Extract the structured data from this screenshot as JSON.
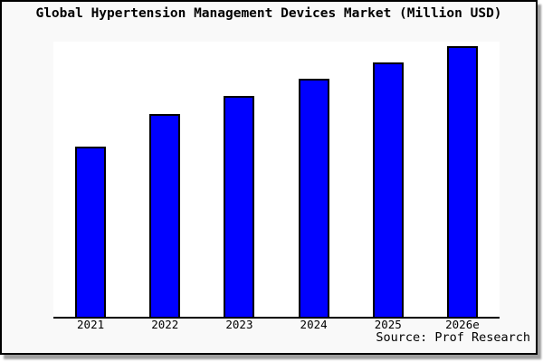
{
  "chart_data": {
    "type": "bar",
    "title": "Global Hypertension Management Devices Market (Million USD)",
    "categories": [
      "2021",
      "2022",
      "2023",
      "2024",
      "2025",
      "2026e"
    ],
    "values": [
      62.8,
      74.9,
      81.6,
      87.8,
      93.8,
      100
    ],
    "xlabel": "",
    "ylabel": "",
    "ylim": [
      0,
      101.6
    ],
    "grid": false,
    "legend": "none",
    "y_axis_visible": false,
    "source_annotation": "Source: Prof Research",
    "colors": {
      "bar_fill": "#0000ff",
      "bar_border": "#000000",
      "figure_background": "#f9f9f9",
      "plot_background": "#ffffff",
      "axis": "#000000",
      "title_text": "#000000"
    }
  }
}
